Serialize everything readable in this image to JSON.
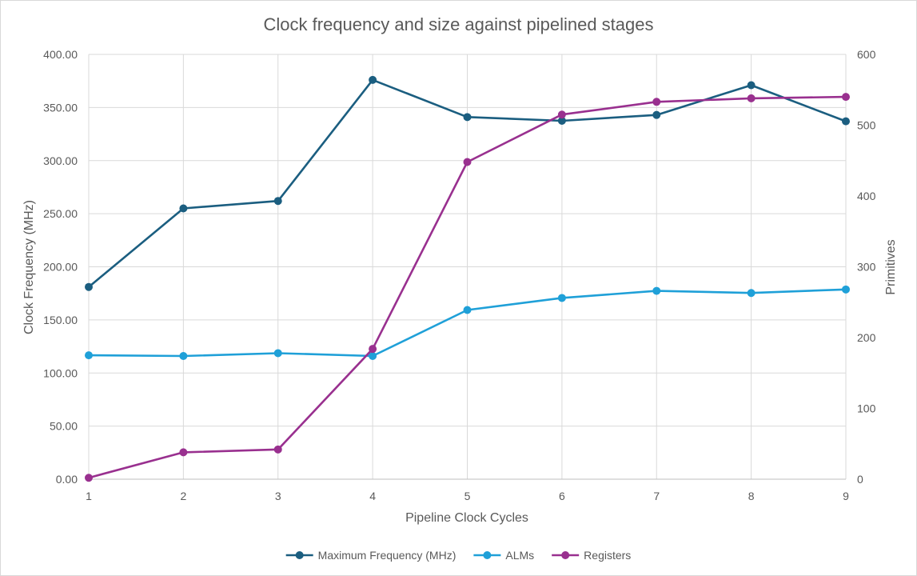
{
  "chart_data": {
    "type": "line",
    "title": "Clock frequency and size against pipelined stages",
    "xlabel": "Pipeline Clock Cycles",
    "ylabel": "Clock Frequency (MHz)",
    "y2label": "Primitives",
    "x": [
      1,
      2,
      3,
      4,
      5,
      6,
      7,
      8,
      9
    ],
    "x_tick_labels": [
      "1",
      "2",
      "3",
      "4",
      "5",
      "6",
      "7",
      "8",
      "9"
    ],
    "ylim": [
      0,
      400
    ],
    "y2lim": [
      0,
      600
    ],
    "y_tick_labels": [
      "0.00",
      "50.00",
      "100.00",
      "150.00",
      "200.00",
      "250.00",
      "300.00",
      "350.00",
      "400.00"
    ],
    "y2_tick_labels": [
      "0",
      "100",
      "200",
      "300",
      "400",
      "500",
      "600"
    ],
    "grid": true,
    "legend_position": "bottom",
    "series": [
      {
        "name": "Maximum Frequency (MHz)",
        "axis": "left",
        "color": "#1b5e80",
        "values": [
          181,
          255,
          262,
          376,
          341,
          337.5,
          343,
          371,
          337
        ]
      },
      {
        "name": "ALMs",
        "axis": "right",
        "color": "#1fa0d8",
        "values": [
          175,
          174,
          178,
          174,
          239,
          256,
          266,
          263,
          268
        ]
      },
      {
        "name": "Registers",
        "axis": "right",
        "color": "#99308f",
        "values": [
          2,
          38,
          42,
          184,
          448,
          515,
          533,
          538,
          540
        ]
      }
    ]
  }
}
